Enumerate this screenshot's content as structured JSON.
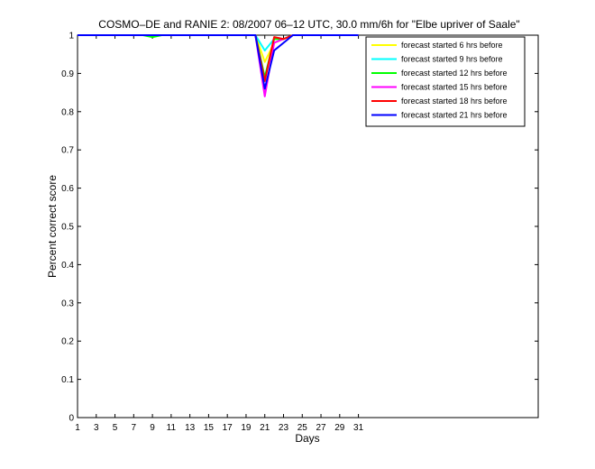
{
  "chart_data": {
    "type": "line",
    "title": "COSMO–DE and RANIE 2: 08/2007 06–12 UTC, 30.0 mm/6h for \"Elbe upriver of Saale\"",
    "xlabel": "Days",
    "ylabel": "Percent correct score",
    "xlim": [
      1,
      50.2
    ],
    "ylim": [
      0,
      1
    ],
    "xticks": [
      "1",
      "3",
      "5",
      "7",
      "9",
      "11",
      "13",
      "15",
      "17",
      "19",
      "21",
      "23",
      "25",
      "27",
      "29",
      "31"
    ],
    "yticks": [
      "0",
      "0.1",
      "0.2",
      "0.3",
      "0.4",
      "0.5",
      "0.6",
      "0.7",
      "0.8",
      "0.9",
      "1"
    ],
    "legend_position": "top-right",
    "x": [
      1,
      2,
      3,
      4,
      5,
      6,
      7,
      8,
      9,
      10,
      11,
      12,
      13,
      14,
      15,
      16,
      17,
      18,
      19,
      20,
      21,
      22,
      23,
      24,
      25,
      26,
      27,
      28,
      29,
      30,
      31
    ],
    "series": [
      {
        "name": "forecast started 6 hrs before",
        "color": "#ffff00",
        "values": [
          1,
          1,
          1,
          1,
          1,
          1,
          1,
          1,
          1,
          1,
          1,
          1,
          1,
          1,
          1,
          1,
          1,
          1,
          1,
          1,
          0.93,
          0.98,
          0.99,
          1,
          1,
          1,
          1,
          1,
          1,
          1,
          1
        ]
      },
      {
        "name": "forecast started 9 hrs before",
        "color": "#00ffff",
        "values": [
          1,
          1,
          1,
          1,
          1,
          1,
          1,
          1,
          1,
          1,
          1,
          1,
          1,
          1,
          1,
          1,
          1,
          1,
          1,
          1,
          0.96,
          0.99,
          0.99,
          1,
          1,
          1,
          1,
          1,
          1,
          1,
          1
        ]
      },
      {
        "name": "forecast started 12 hrs before",
        "color": "#00ff00",
        "values": [
          1,
          1,
          1,
          1,
          1,
          1,
          1,
          1,
          0.995,
          1,
          1,
          1,
          1,
          1,
          1,
          1,
          1,
          1,
          1,
          1,
          0.89,
          0.99,
          0.99,
          1,
          1,
          1,
          1,
          1,
          1,
          1,
          1
        ]
      },
      {
        "name": "forecast started 15 hrs before",
        "color": "#ff00ff",
        "values": [
          1,
          1,
          1,
          1,
          1,
          1,
          1,
          1,
          1,
          1,
          1,
          1,
          1,
          1,
          1,
          1,
          1,
          1,
          1,
          1,
          0.84,
          0.98,
          0.99,
          1,
          1,
          1,
          1,
          1,
          1,
          1,
          1
        ]
      },
      {
        "name": "forecast started 18 hrs before",
        "color": "#ff0000",
        "values": [
          1,
          1,
          1,
          1,
          1,
          1,
          1,
          1,
          1,
          1,
          1,
          1,
          1,
          1,
          1,
          1,
          1,
          1,
          1,
          1,
          0.88,
          0.995,
          0.99,
          1,
          1,
          1,
          1,
          1,
          1,
          1,
          1
        ]
      },
      {
        "name": "forecast started 21 hrs before",
        "color": "#0000ff",
        "values": [
          1,
          1,
          1,
          1,
          1,
          1,
          1,
          1,
          1,
          1,
          1,
          1,
          1,
          1,
          1,
          1,
          1,
          1,
          1,
          1,
          0.86,
          0.96,
          0.98,
          1,
          1,
          1,
          1,
          1,
          1,
          1,
          1
        ]
      }
    ]
  }
}
